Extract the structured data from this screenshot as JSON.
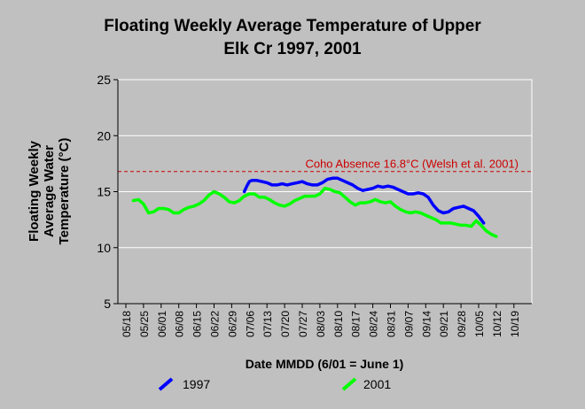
{
  "chart_data": {
    "type": "line",
    "title_lines": [
      "Floating Weekly Average Temperature of Upper",
      "Elk Cr 1997, 2001"
    ],
    "xlabel": "Date MMDD (6/01 = June 1)",
    "ylabel_lines": [
      "Floating Weekly",
      "Average Water",
      "Temperature (°C)"
    ],
    "x_tick_labels": [
      "05/18",
      "05/25",
      "06/01",
      "06/08",
      "06/15",
      "06/22",
      "06/29",
      "07/06",
      "07/13",
      "07/20",
      "07/27",
      "08/03",
      "08/10",
      "08/17",
      "08/24",
      "08/31",
      "09/07",
      "09/14",
      "09/21",
      "09/28",
      "10/05",
      "10/12",
      "10/19"
    ],
    "ylim": [
      5,
      25
    ],
    "y_ticks": [
      5,
      10,
      15,
      20,
      25
    ],
    "grid": "horizontal",
    "reference_line": {
      "y": 16.8,
      "label": "Coho Absence 16.8°C (Welsh et al. 2001)",
      "color": "#cc0000"
    },
    "series": [
      {
        "name": "1997",
        "color": "#0000ff",
        "points": [
          [
            "07/04",
            15.0
          ],
          [
            "07/05",
            15.5
          ],
          [
            "07/06",
            15.9
          ],
          [
            "07/07",
            16.0
          ],
          [
            "07/09",
            16.0
          ],
          [
            "07/11",
            15.9
          ],
          [
            "07/13",
            15.8
          ],
          [
            "07/15",
            15.6
          ],
          [
            "07/17",
            15.6
          ],
          [
            "07/19",
            15.7
          ],
          [
            "07/21",
            15.6
          ],
          [
            "07/23",
            15.7
          ],
          [
            "07/25",
            15.8
          ],
          [
            "07/27",
            15.9
          ],
          [
            "07/29",
            15.7
          ],
          [
            "07/31",
            15.6
          ],
          [
            "08/02",
            15.6
          ],
          [
            "08/04",
            15.8
          ],
          [
            "08/06",
            16.1
          ],
          [
            "08/08",
            16.2
          ],
          [
            "08/10",
            16.2
          ],
          [
            "08/12",
            16.0
          ],
          [
            "08/14",
            15.8
          ],
          [
            "08/16",
            15.6
          ],
          [
            "08/18",
            15.3
          ],
          [
            "08/20",
            15.1
          ],
          [
            "08/22",
            15.2
          ],
          [
            "08/24",
            15.3
          ],
          [
            "08/26",
            15.5
          ],
          [
            "08/28",
            15.4
          ],
          [
            "08/30",
            15.5
          ],
          [
            "09/01",
            15.4
          ],
          [
            "09/03",
            15.2
          ],
          [
            "09/05",
            15.0
          ],
          [
            "09/07",
            14.8
          ],
          [
            "09/09",
            14.8
          ],
          [
            "09/11",
            14.9
          ],
          [
            "09/13",
            14.8
          ],
          [
            "09/15",
            14.5
          ],
          [
            "09/17",
            13.8
          ],
          [
            "09/19",
            13.3
          ],
          [
            "09/21",
            13.1
          ],
          [
            "09/23",
            13.2
          ],
          [
            "09/25",
            13.5
          ],
          [
            "09/27",
            13.6
          ],
          [
            "09/29",
            13.7
          ],
          [
            "10/01",
            13.5
          ],
          [
            "10/03",
            13.3
          ],
          [
            "10/05",
            12.8
          ],
          [
            "10/07",
            12.2
          ]
        ]
      },
      {
        "name": "2001",
        "color": "#00ff00",
        "points": [
          [
            "05/21",
            14.2
          ],
          [
            "05/23",
            14.3
          ],
          [
            "05/25",
            13.9
          ],
          [
            "05/27",
            13.1
          ],
          [
            "05/29",
            13.2
          ],
          [
            "05/31",
            13.5
          ],
          [
            "06/02",
            13.5
          ],
          [
            "06/04",
            13.4
          ],
          [
            "06/06",
            13.1
          ],
          [
            "06/08",
            13.1
          ],
          [
            "06/10",
            13.4
          ],
          [
            "06/12",
            13.6
          ],
          [
            "06/14",
            13.7
          ],
          [
            "06/16",
            13.9
          ],
          [
            "06/18",
            14.2
          ],
          [
            "06/20",
            14.7
          ],
          [
            "06/22",
            15.0
          ],
          [
            "06/24",
            14.8
          ],
          [
            "06/26",
            14.5
          ],
          [
            "06/28",
            14.1
          ],
          [
            "06/30",
            14.0
          ],
          [
            "07/02",
            14.2
          ],
          [
            "07/04",
            14.6
          ],
          [
            "07/06",
            14.8
          ],
          [
            "07/08",
            14.8
          ],
          [
            "07/10",
            14.5
          ],
          [
            "07/12",
            14.5
          ],
          [
            "07/14",
            14.3
          ],
          [
            "07/16",
            14.0
          ],
          [
            "07/18",
            13.8
          ],
          [
            "07/20",
            13.7
          ],
          [
            "07/22",
            13.9
          ],
          [
            "07/24",
            14.2
          ],
          [
            "07/26",
            14.4
          ],
          [
            "07/28",
            14.6
          ],
          [
            "07/30",
            14.6
          ],
          [
            "08/01",
            14.6
          ],
          [
            "08/03",
            14.8
          ],
          [
            "08/05",
            15.3
          ],
          [
            "08/07",
            15.2
          ],
          [
            "08/09",
            15.0
          ],
          [
            "08/11",
            14.9
          ],
          [
            "08/13",
            14.5
          ],
          [
            "08/15",
            14.1
          ],
          [
            "08/17",
            13.8
          ],
          [
            "08/19",
            14.0
          ],
          [
            "08/21",
            14.0
          ],
          [
            "08/23",
            14.1
          ],
          [
            "08/25",
            14.3
          ],
          [
            "08/27",
            14.1
          ],
          [
            "08/29",
            14.0
          ],
          [
            "08/31",
            14.1
          ],
          [
            "09/02",
            13.7
          ],
          [
            "09/04",
            13.4
          ],
          [
            "09/06",
            13.2
          ],
          [
            "09/08",
            13.1
          ],
          [
            "09/10",
            13.2
          ],
          [
            "09/12",
            13.1
          ],
          [
            "09/14",
            12.9
          ],
          [
            "09/16",
            12.7
          ],
          [
            "09/18",
            12.5
          ],
          [
            "09/20",
            12.2
          ],
          [
            "09/22",
            12.2
          ],
          [
            "09/24",
            12.2
          ],
          [
            "09/26",
            12.1
          ],
          [
            "09/28",
            12.0
          ],
          [
            "09/30",
            12.0
          ],
          [
            "10/02",
            11.9
          ],
          [
            "10/04",
            12.4
          ],
          [
            "10/06",
            12.0
          ],
          [
            "10/08",
            11.5
          ],
          [
            "10/10",
            11.2
          ],
          [
            "10/12",
            11.0
          ]
        ]
      }
    ],
    "legend_placement": "bottom"
  }
}
